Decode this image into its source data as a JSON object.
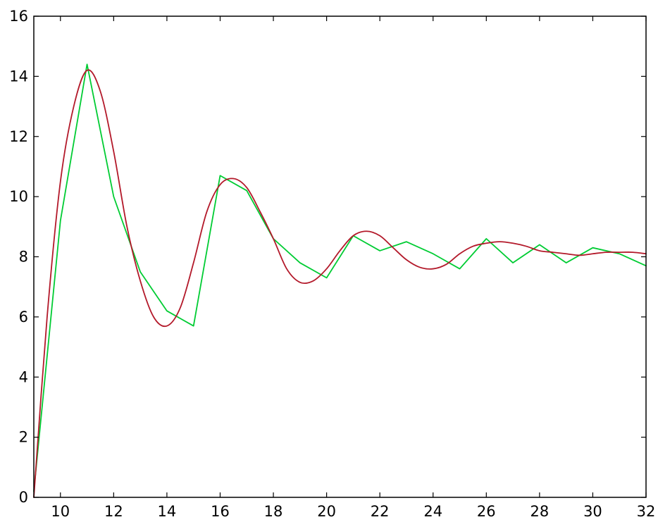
{
  "chart_data": {
    "type": "line",
    "xlim": [
      9,
      32
    ],
    "ylim": [
      0,
      16
    ],
    "xticks": [
      10,
      12,
      14,
      16,
      18,
      20,
      22,
      24,
      26,
      28,
      30,
      32
    ],
    "yticks": [
      0,
      2,
      4,
      6,
      8,
      10,
      12,
      14,
      16
    ],
    "grid": false,
    "legend": "none",
    "series": [
      {
        "color": "#00cc33",
        "style": "piecewise-linear",
        "x": [
          9,
          10,
          11,
          12,
          13,
          14,
          15,
          16,
          17,
          18,
          19,
          20,
          21,
          22,
          23,
          24,
          25,
          26,
          27,
          28,
          29,
          30,
          31,
          32
        ],
        "y": [
          0.2,
          9.2,
          14.4,
          10.0,
          7.5,
          6.2,
          5.7,
          10.7,
          10.2,
          8.6,
          7.8,
          7.3,
          8.7,
          8.2,
          8.5,
          8.1,
          7.6,
          8.6,
          7.8,
          8.4,
          7.8,
          8.3,
          8.1,
          7.7
        ]
      },
      {
        "color": "#b3192a",
        "style": "smooth",
        "x": [
          9,
          9.5,
          10,
          10.5,
          11,
          11.5,
          12,
          12.5,
          13,
          13.5,
          14,
          14.5,
          15,
          15.5,
          16,
          16.5,
          17,
          17.5,
          18,
          18.5,
          19,
          19.5,
          20,
          20.5,
          21,
          21.5,
          22,
          22.5,
          23,
          23.5,
          24,
          24.5,
          25,
          25.5,
          26,
          26.5,
          27,
          27.5,
          28,
          28.5,
          29,
          29.5,
          30,
          30.5,
          31,
          31.5,
          32
        ],
        "y": [
          0.0,
          6.0,
          10.5,
          13.0,
          14.2,
          13.5,
          11.5,
          9.0,
          7.2,
          6.0,
          5.7,
          6.3,
          7.8,
          9.5,
          10.4,
          10.6,
          10.3,
          9.5,
          8.6,
          7.6,
          7.15,
          7.2,
          7.6,
          8.2,
          8.7,
          8.85,
          8.7,
          8.3,
          7.9,
          7.65,
          7.6,
          7.75,
          8.1,
          8.35,
          8.45,
          8.5,
          8.45,
          8.35,
          8.2,
          8.15,
          8.1,
          8.05,
          8.1,
          8.15,
          8.15,
          8.15,
          8.1
        ]
      }
    ]
  }
}
